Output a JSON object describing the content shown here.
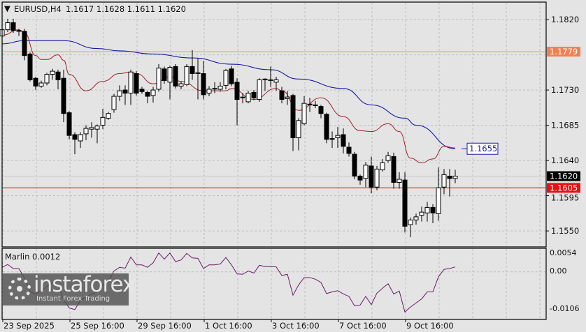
{
  "header": {
    "menu_icon": "triangle-down-icon",
    "symbol": "EURUSD,H4",
    "ohlc": "1.1617 1.1628 1.1611 1.1620"
  },
  "indicator": {
    "label": "Marlin 0.0012"
  },
  "watermark": {
    "brand": "instaforex",
    "tagline": "Instant Forex Trading"
  },
  "colors": {
    "background": "#e4e4e4",
    "bull": "#ffffff",
    "bear": "#000000",
    "ma_fast": "#a0202a",
    "ma_slow": "#1a1aa8",
    "support_line": "#e03030",
    "resistance_line": "#f09070",
    "marlin_line": "#6a1a6a",
    "price_label_current": "#000000",
    "price_label_support": "#e81010",
    "price_label_resistance": "#f08050"
  },
  "chart_data": [
    {
      "type": "candlestick",
      "symbol": "EURUSD",
      "timeframe": "H4",
      "ylim": [
        1.1537,
        1.1845
      ],
      "grid": true,
      "price_ticks": [
        "1.1820",
        "1.1730",
        "1.1685",
        "1.1640",
        "1.1595",
        "1.1550"
      ],
      "time_labels": [
        "23 Sep 2025",
        "25 Sep 16:00",
        "29 Sep 16:00",
        "1 Oct 16:00",
        "3 Oct 16:00",
        "7 Oct 16:00",
        "9 Oct 16:00"
      ],
      "current_price": "1.1620",
      "horizontal_levels": [
        {
          "value": "1.1779",
          "role": "resistance"
        },
        {
          "value": "1.1605",
          "role": "support"
        }
      ],
      "slow_ma_label": "1.1655",
      "candles_ohlc": [
        [
          1.1799,
          1.1809,
          1.1796,
          1.1807
        ],
        [
          1.1807,
          1.1821,
          1.1804,
          1.1816
        ],
        [
          1.1816,
          1.1821,
          1.1803,
          1.1806
        ],
        [
          1.1806,
          1.1808,
          1.1799,
          1.1805
        ],
        [
          1.1805,
          1.1808,
          1.1768,
          1.1774
        ],
        [
          1.1776,
          1.1778,
          1.1741,
          1.1743
        ],
        [
          1.1745,
          1.1747,
          1.173,
          1.1735
        ],
        [
          1.1735,
          1.1742,
          1.1733,
          1.1739
        ],
        [
          1.1739,
          1.1752,
          1.1736,
          1.175
        ],
        [
          1.175,
          1.1757,
          1.1743,
          1.1754
        ],
        [
          1.1753,
          1.1756,
          1.1731,
          1.1743
        ],
        [
          1.1745,
          1.1756,
          1.1689,
          1.17
        ],
        [
          1.1701,
          1.1703,
          1.1667,
          1.1672
        ],
        [
          1.1673,
          1.1676,
          1.1648,
          1.1667
        ],
        [
          1.1665,
          1.1676,
          1.1656,
          1.1673
        ],
        [
          1.1674,
          1.1685,
          1.1666,
          1.1681
        ],
        [
          1.168,
          1.1689,
          1.1669,
          1.1682
        ],
        [
          1.168,
          1.1686,
          1.1662,
          1.1684
        ],
        [
          1.1685,
          1.1706,
          1.168,
          1.1695
        ],
        [
          1.1694,
          1.1702,
          1.1692,
          1.17
        ],
        [
          1.1705,
          1.1725,
          1.1701,
          1.1722
        ],
        [
          1.1722,
          1.1736,
          1.1716,
          1.1729
        ],
        [
          1.173,
          1.1736,
          1.1711,
          1.1726
        ],
        [
          1.1726,
          1.1756,
          1.1711,
          1.1753
        ],
        [
          1.1751,
          1.1754,
          1.1723,
          1.1726
        ],
        [
          1.1731,
          1.1734,
          1.1725,
          1.1728
        ],
        [
          1.1727,
          1.1729,
          1.1713,
          1.1722
        ],
        [
          1.1723,
          1.1734,
          1.1714,
          1.173
        ],
        [
          1.1731,
          1.1763,
          1.1728,
          1.1758
        ],
        [
          1.1757,
          1.176,
          1.1738,
          1.1742
        ],
        [
          1.174,
          1.1761,
          1.1718,
          1.1759
        ],
        [
          1.176,
          1.1763,
          1.1732,
          1.1735
        ],
        [
          1.1735,
          1.1741,
          1.1731,
          1.1738
        ],
        [
          1.1737,
          1.1763,
          1.1735,
          1.176
        ],
        [
          1.176,
          1.1781,
          1.1743,
          1.1751
        ],
        [
          1.1752,
          1.177,
          1.1718,
          1.1751
        ],
        [
          1.1751,
          1.1767,
          1.1718,
          1.1724
        ],
        [
          1.1726,
          1.1735,
          1.1722,
          1.1731
        ],
        [
          1.1732,
          1.174,
          1.1726,
          1.1732
        ],
        [
          1.1731,
          1.174,
          1.1728,
          1.1735
        ],
        [
          1.1736,
          1.1757,
          1.1731,
          1.1755
        ],
        [
          1.1757,
          1.1761,
          1.1735,
          1.1738
        ],
        [
          1.174,
          1.1745,
          1.1685,
          1.1718
        ],
        [
          1.1721,
          1.1726,
          1.1713,
          1.172
        ],
        [
          1.1715,
          1.1729,
          1.1713,
          1.1726
        ],
        [
          1.1727,
          1.173,
          1.1717,
          1.172
        ],
        [
          1.1718,
          1.1745,
          1.1715,
          1.1743
        ],
        [
          1.1743,
          1.1745,
          1.1729,
          1.1744
        ],
        [
          1.1742,
          1.176,
          1.1734,
          1.1743
        ],
        [
          1.174,
          1.1747,
          1.1729,
          1.1743
        ],
        [
          1.1729,
          1.1734,
          1.1713,
          1.1718
        ],
        [
          1.1719,
          1.1729,
          1.1711,
          1.1721
        ],
        [
          1.1723,
          1.1725,
          1.1652,
          1.1669
        ],
        [
          1.1669,
          1.1694,
          1.1653,
          1.1691
        ],
        [
          1.1687,
          1.1722,
          1.1685,
          1.1713
        ],
        [
          1.1712,
          1.172,
          1.1702,
          1.1711
        ],
        [
          1.1711,
          1.1716,
          1.1707,
          1.171
        ],
        [
          1.1709,
          1.1711,
          1.1694,
          1.17
        ],
        [
          1.1699,
          1.1701,
          1.1662,
          1.1667
        ],
        [
          1.1668,
          1.1677,
          1.1656,
          1.1667
        ],
        [
          1.1669,
          1.1683,
          1.1656,
          1.1672
        ],
        [
          1.1673,
          1.1681,
          1.1649,
          1.1658
        ],
        [
          1.1657,
          1.1663,
          1.1645,
          1.1649
        ],
        [
          1.1648,
          1.1651,
          1.1616,
          1.162
        ],
        [
          1.162,
          1.1622,
          1.1609,
          1.1615
        ],
        [
          1.1617,
          1.1638,
          1.1606,
          1.1634
        ],
        [
          1.1633,
          1.1645,
          1.1598,
          1.1606
        ],
        [
          1.1606,
          1.1633,
          1.1602,
          1.1629
        ],
        [
          1.1628,
          1.1642,
          1.1626,
          1.1637
        ],
        [
          1.164,
          1.1651,
          1.1637,
          1.1646
        ],
        [
          1.1645,
          1.165,
          1.1604,
          1.1612
        ],
        [
          1.1612,
          1.1625,
          1.1604,
          1.1616
        ],
        [
          1.1615,
          1.1625,
          1.1548,
          1.1556
        ],
        [
          1.1558,
          1.1567,
          1.1542,
          1.1564
        ],
        [
          1.1564,
          1.1572,
          1.1558,
          1.1568
        ],
        [
          1.157,
          1.1581,
          1.1562,
          1.1574
        ],
        [
          1.1573,
          1.1587,
          1.1562,
          1.158
        ],
        [
          1.158,
          1.1584,
          1.156,
          1.1573
        ],
        [
          1.1572,
          1.1631,
          1.1563,
          1.1605
        ],
        [
          1.1606,
          1.1629,
          1.1597,
          1.1622
        ],
        [
          1.162,
          1.1629,
          1.1594,
          1.1617
        ],
        [
          1.1617,
          1.1628,
          1.1611,
          1.162
        ]
      ],
      "ma_fast_points": [
        [
          0,
          1.18
        ],
        [
          3,
          1.1807
        ],
        [
          4,
          1.1803
        ],
        [
          6,
          1.1774
        ],
        [
          7,
          1.1769
        ],
        [
          8,
          1.1769
        ],
        [
          10,
          1.1775
        ],
        [
          11,
          1.1768
        ],
        [
          12,
          1.175
        ],
        [
          15,
          1.1729
        ],
        [
          18,
          1.1741
        ],
        [
          21,
          1.1751
        ],
        [
          23,
          1.1753
        ],
        [
          24,
          1.1751
        ],
        [
          27,
          1.1738
        ],
        [
          30,
          1.1747
        ],
        [
          32,
          1.1741
        ],
        [
          36,
          1.1729
        ],
        [
          40,
          1.1729
        ],
        [
          41,
          1.1732
        ],
        [
          45,
          1.1718
        ],
        [
          49,
          1.1732
        ],
        [
          50,
          1.1729
        ],
        [
          53,
          1.1704
        ],
        [
          57,
          1.172
        ],
        [
          61,
          1.1696
        ],
        [
          64,
          1.1678
        ],
        [
          66,
          1.1677
        ],
        [
          69,
          1.1687
        ],
        [
          71,
          1.1677
        ],
        [
          73,
          1.1643
        ],
        [
          75,
          1.1637
        ],
        [
          77,
          1.1642
        ],
        [
          79,
          1.1658
        ],
        [
          81,
          1.1656
        ]
      ],
      "ma_slow_points": [
        [
          0,
          1.1789
        ],
        [
          4,
          1.1793
        ],
        [
          11,
          1.1793
        ],
        [
          17,
          1.1783
        ],
        [
          21,
          1.178
        ],
        [
          27,
          1.1776
        ],
        [
          34,
          1.1771
        ],
        [
          41,
          1.1763
        ],
        [
          48,
          1.1756
        ],
        [
          53,
          1.1744
        ],
        [
          61,
          1.1732
        ],
        [
          66,
          1.1711
        ],
        [
          72,
          1.1694
        ],
        [
          74,
          1.1685
        ],
        [
          81,
          1.1655
        ]
      ]
    },
    {
      "type": "line",
      "name": "Marlin",
      "ylim": [
        -0.0106,
        0.0054
      ],
      "tick_labels": [
        "0.0054",
        "0.00",
        "-0.0106"
      ],
      "values": [
        0.0011,
        0.0018,
        0.0008,
        0.0008,
        -0.0015,
        -0.0049,
        -0.0054,
        -0.0046,
        -0.0036,
        -0.0026,
        -0.0032,
        -0.0069,
        -0.0088,
        -0.0092,
        -0.007,
        -0.006,
        -0.0055,
        -0.0049,
        -0.0032,
        -0.0023,
        0.0002,
        0.0011,
        0.0009,
        0.0036,
        0.0017,
        0.0017,
        0.0011,
        0.0022,
        0.0046,
        0.0031,
        0.0046,
        0.0025,
        0.0029,
        0.0045,
        0.0034,
        0.0033,
        0.0008,
        0.0017,
        0.0017,
        0.0019,
        0.0035,
        0.0017,
        -0.0005,
        -0.0006,
        0.0002,
        -0.0003,
        0.0016,
        0.0013,
        0.0013,
        0.0012,
        -0.0009,
        -0.0006,
        -0.0057,
        -0.0032,
        -0.0014,
        -0.0014,
        -0.0018,
        -0.0026,
        -0.0053,
        -0.0049,
        -0.0046,
        -0.0054,
        -0.006,
        -0.0083,
        -0.0081,
        -0.006,
        -0.008,
        -0.0052,
        -0.004,
        -0.0029,
        -0.0054,
        -0.0047,
        -0.0098,
        -0.0086,
        -0.0076,
        -0.0066,
        -0.0049,
        -0.0049,
        -0.0012,
        0.0006,
        0.0008,
        0.0012
      ]
    }
  ]
}
